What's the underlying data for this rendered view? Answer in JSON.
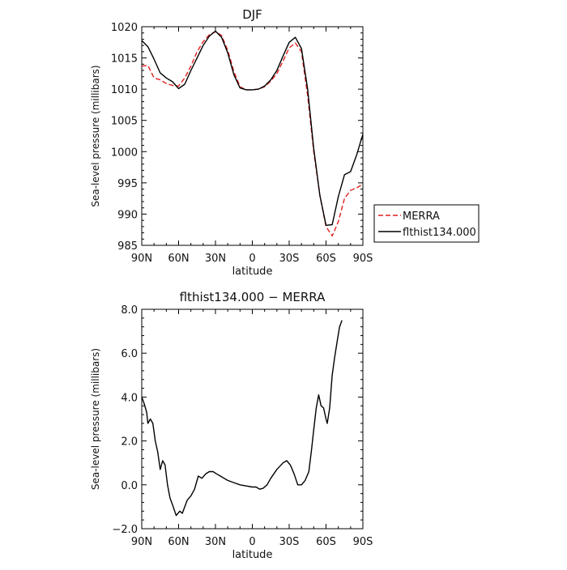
{
  "chart_data": [
    {
      "type": "line",
      "title": "DJF",
      "xlabel": "latitude",
      "ylabel": "Sea-level pressure (millibars)",
      "x_ticks": [
        {
          "value": 90,
          "label": "90N"
        },
        {
          "value": 60,
          "label": "60N"
        },
        {
          "value": 30,
          "label": "30N"
        },
        {
          "value": 0,
          "label": "0"
        },
        {
          "value": -30,
          "label": "30S"
        },
        {
          "value": -60,
          "label": "60S"
        },
        {
          "value": -90,
          "label": "90S"
        }
      ],
      "xlim": [
        90,
        -90
      ],
      "ylim": [
        985,
        1020
      ],
      "y_ticks": [
        {
          "value": 985,
          "label": "985"
        },
        {
          "value": 990,
          "label": "990"
        },
        {
          "value": 995,
          "label": "995"
        },
        {
          "value": 1000,
          "label": "1000"
        },
        {
          "value": 1005,
          "label": "1005"
        },
        {
          "value": 1010,
          "label": "1010"
        },
        {
          "value": 1015,
          "label": "1015"
        },
        {
          "value": 1020,
          "label": "1020"
        }
      ],
      "legend_position": "right",
      "series": [
        {
          "name": "MERRA",
          "color": "#e02020",
          "dash": "dashed",
          "points": [
            [
              90,
              1013.7
            ],
            [
              85,
              1013.8
            ],
            [
              80,
              1011.8
            ],
            [
              75,
              1011.5
            ],
            [
              70,
              1010.9
            ],
            [
              65,
              1010.6
            ],
            [
              60,
              1010.5
            ],
            [
              55,
              1011.8
            ],
            [
              50,
              1013.7
            ],
            [
              45,
              1016.0
            ],
            [
              40,
              1017.6
            ],
            [
              35,
              1018.7
            ],
            [
              30,
              1019.2
            ],
            [
              25,
              1018.6
            ],
            [
              20,
              1016.2
            ],
            [
              15,
              1012.8
            ],
            [
              10,
              1010.4
            ],
            [
              5,
              1009.9
            ],
            [
              0,
              1009.9
            ],
            [
              -5,
              1010.0
            ],
            [
              -10,
              1010.4
            ],
            [
              -15,
              1011.3
            ],
            [
              -20,
              1012.5
            ],
            [
              -25,
              1014.5
            ],
            [
              -30,
              1016.6
            ],
            [
              -35,
              1017.4
            ],
            [
              -40,
              1016.0
            ],
            [
              -45,
              1009.0
            ],
            [
              -50,
              1000.0
            ],
            [
              -55,
              993.0
            ],
            [
              -60,
              988.0
            ],
            [
              -65,
              986.5
            ],
            [
              -70,
              988.8
            ],
            [
              -75,
              992.5
            ],
            [
              -80,
              993.8
            ],
            [
              -85,
              994.2
            ],
            [
              -90,
              994.8
            ]
          ]
        },
        {
          "name": "flthist134.000",
          "color": "#000000",
          "dash": "solid",
          "points": [
            [
              90,
              1017.8
            ],
            [
              85,
              1016.8
            ],
            [
              80,
              1014.8
            ],
            [
              75,
              1012.6
            ],
            [
              70,
              1011.8
            ],
            [
              65,
              1011.2
            ],
            [
              60,
              1010.1
            ],
            [
              55,
              1010.8
            ],
            [
              50,
              1013.0
            ],
            [
              45,
              1015.0
            ],
            [
              40,
              1017.0
            ],
            [
              35,
              1018.5
            ],
            [
              30,
              1019.3
            ],
            [
              25,
              1018.3
            ],
            [
              20,
              1015.8
            ],
            [
              15,
              1012.3
            ],
            [
              10,
              1010.2
            ],
            [
              5,
              1009.9
            ],
            [
              0,
              1009.9
            ],
            [
              -5,
              1010.0
            ],
            [
              -10,
              1010.5
            ],
            [
              -15,
              1011.5
            ],
            [
              -20,
              1013.0
            ],
            [
              -25,
              1015.3
            ],
            [
              -30,
              1017.5
            ],
            [
              -35,
              1018.3
            ],
            [
              -40,
              1016.5
            ],
            [
              -45,
              1010.0
            ],
            [
              -50,
              1000.5
            ],
            [
              -55,
              993.0
            ],
            [
              -60,
              988.2
            ],
            [
              -65,
              988.3
            ],
            [
              -70,
              992.8
            ],
            [
              -75,
              996.3
            ],
            [
              -80,
              996.8
            ],
            [
              -85,
              999.5
            ],
            [
              -90,
              1002.8
            ]
          ]
        }
      ]
    },
    {
      "type": "line",
      "title": "flthist134.000 − MERRA",
      "xlabel": "latitude",
      "ylabel": "Sea-level pressure (millibars)",
      "x_ticks": [
        {
          "value": 90,
          "label": "90N"
        },
        {
          "value": 60,
          "label": "60N"
        },
        {
          "value": 30,
          "label": "30N"
        },
        {
          "value": 0,
          "label": "0"
        },
        {
          "value": -30,
          "label": "30S"
        },
        {
          "value": -60,
          "label": "60S"
        },
        {
          "value": -90,
          "label": "90S"
        }
      ],
      "xlim": [
        90,
        -90
      ],
      "ylim": [
        -2.0,
        8.0
      ],
      "y_ticks": [
        {
          "value": -2,
          "label": "−2.0"
        },
        {
          "value": 0,
          "label": "0.0"
        },
        {
          "value": 2,
          "label": "2.0"
        },
        {
          "value": 4,
          "label": "4.0"
        },
        {
          "value": 6,
          "label": "6.0"
        },
        {
          "value": 8,
          "label": "8.0"
        }
      ],
      "series": [
        {
          "name": "",
          "color": "#000000",
          "dash": "solid",
          "points": [
            [
              90,
              4.0
            ],
            [
              88,
              3.7
            ],
            [
              86,
              3.3
            ],
            [
              85,
              2.8
            ],
            [
              83,
              3.0
            ],
            [
              81,
              2.8
            ],
            [
              79,
              2.0
            ],
            [
              77,
              1.5
            ],
            [
              75,
              0.7
            ],
            [
              73,
              1.1
            ],
            [
              71,
              0.9
            ],
            [
              69,
              0.0
            ],
            [
              67,
              -0.6
            ],
            [
              65,
              -0.9
            ],
            [
              62,
              -1.4
            ],
            [
              59,
              -1.2
            ],
            [
              57,
              -1.3
            ],
            [
              55,
              -1.0
            ],
            [
              53,
              -0.7
            ],
            [
              50,
              -0.5
            ],
            [
              47,
              -0.2
            ],
            [
              44,
              0.4
            ],
            [
              41,
              0.3
            ],
            [
              38,
              0.5
            ],
            [
              35,
              0.6
            ],
            [
              32,
              0.6
            ],
            [
              29,
              0.5
            ],
            [
              26,
              0.4
            ],
            [
              23,
              0.3
            ],
            [
              20,
              0.2
            ],
            [
              15,
              0.1
            ],
            [
              10,
              0.0
            ],
            [
              5,
              -0.05
            ],
            [
              0,
              -0.1
            ],
            [
              -3,
              -0.1
            ],
            [
              -6,
              -0.2
            ],
            [
              -9,
              -0.15
            ],
            [
              -12,
              0.0
            ],
            [
              -15,
              0.3
            ],
            [
              -20,
              0.7
            ],
            [
              -25,
              1.0
            ],
            [
              -28,
              1.1
            ],
            [
              -31,
              0.9
            ],
            [
              -34,
              0.5
            ],
            [
              -37,
              0.0
            ],
            [
              -40,
              0.0
            ],
            [
              -43,
              0.2
            ],
            [
              -46,
              0.6
            ],
            [
              -48,
              1.5
            ],
            [
              -50,
              2.5
            ],
            [
              -52,
              3.5
            ],
            [
              -54,
              4.1
            ],
            [
              -56,
              3.6
            ],
            [
              -58,
              3.5
            ],
            [
              -60,
              3.0
            ],
            [
              -61,
              2.8
            ],
            [
              -63,
              3.5
            ],
            [
              -65,
              5.0
            ],
            [
              -67,
              5.8
            ],
            [
              -69,
              6.5
            ],
            [
              -71,
              7.2
            ],
            [
              -73,
              7.5
            ]
          ]
        }
      ]
    }
  ]
}
